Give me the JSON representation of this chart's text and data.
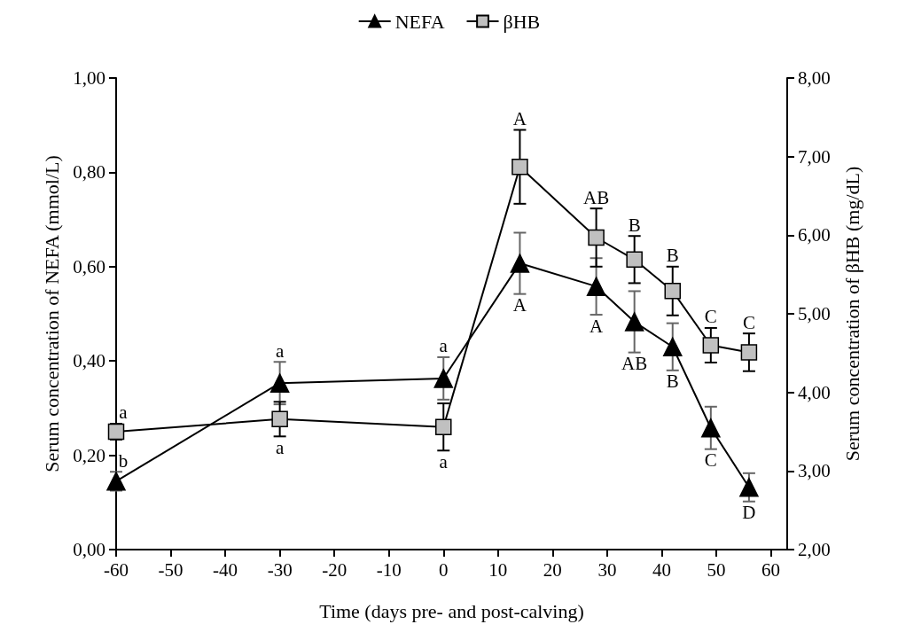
{
  "chart_data": {
    "type": "line",
    "xlabel": "Time (days pre- and post-calving)",
    "ylabel": "Serum concentration of NEFA (mmol/L)",
    "y2label": "Serum concentration of βHB (mg/dL)",
    "x": [
      -60,
      -30,
      0,
      14,
      28,
      35,
      42,
      49,
      56
    ],
    "series": [
      {
        "name": "NEFA",
        "color": "#000000",
        "marker": "triangle",
        "values": [
          0.145,
          0.353,
          0.363,
          0.607,
          0.558,
          0.483,
          0.43,
          0.258,
          0.132
        ],
        "errors": [
          0.02,
          0.045,
          0.045,
          0.065,
          0.06,
          0.065,
          0.05,
          0.045,
          0.03
        ]
      },
      {
        "name": "βHB",
        "color": "#c0c0c0",
        "marker": "square",
        "axis": "y2",
        "values": [
          3.5,
          3.66,
          3.56,
          6.87,
          5.97,
          5.69,
          5.29,
          4.6,
          4.51
        ],
        "errors": [
          0.1,
          0.22,
          0.3,
          0.47,
          0.37,
          0.3,
          0.31,
          0.22,
          0.24
        ]
      }
    ],
    "xlim": [
      -60,
      63
    ],
    "xticks": [
      -60,
      -50,
      -40,
      -30,
      -20,
      -10,
      0,
      10,
      20,
      30,
      40,
      50,
      60
    ],
    "ylim": [
      0,
      1
    ],
    "yticks": [
      {
        "value": 0,
        "label": "0,00"
      },
      {
        "value": 0.2,
        "label": "0,20"
      },
      {
        "value": 0.4,
        "label": "0,40"
      },
      {
        "value": 0.6,
        "label": "0,60"
      },
      {
        "value": 0.8,
        "label": "0,80"
      },
      {
        "value": 1,
        "label": "1,00"
      }
    ],
    "y2lim": [
      2,
      8
    ],
    "y2ticks": [
      {
        "value": 2,
        "label": "2,00"
      },
      {
        "value": 3,
        "label": "3,00"
      },
      {
        "value": 4,
        "label": "4,00"
      },
      {
        "value": 5,
        "label": "5,00"
      },
      {
        "value": 6,
        "label": "6,00"
      },
      {
        "value": 7,
        "label": "7,00"
      },
      {
        "value": 8,
        "label": "8,00"
      }
    ],
    "annotations": [
      {
        "text": "b",
        "x": -60,
        "y": 0.165
      },
      {
        "text": "a",
        "x": -30,
        "y": 0.398
      },
      {
        "text": "a",
        "x": 0,
        "y": 0.408
      },
      {
        "text": "A",
        "x": 14,
        "y": 0.542
      },
      {
        "text": "A",
        "x": 28,
        "y": 0.498
      },
      {
        "text": "AB",
        "x": 35,
        "y": 0.418
      },
      {
        "text": "B",
        "x": 42,
        "y": 0.38
      },
      {
        "text": "C",
        "x": 49,
        "y": 0.213
      },
      {
        "text": "D",
        "x": 56,
        "y": 0.102
      },
      {
        "text": "a",
        "x": -60,
        "y": 0.267
      },
      {
        "text": "a",
        "x": -30,
        "y": 0.24
      },
      {
        "text": "a",
        "x": 0,
        "y": 0.21
      },
      {
        "text": "A",
        "x": 14,
        "y": 0.89
      },
      {
        "text": "AB",
        "x": 28,
        "y": 0.723
      },
      {
        "text": "B",
        "x": 35,
        "y": 0.665
      },
      {
        "text": "B",
        "x": 42,
        "y": 0.6
      },
      {
        "text": "C",
        "x": 49,
        "y": 0.47
      },
      {
        "text": "C",
        "x": 56,
        "y": 0.458
      }
    ],
    "grid": false,
    "legend": "top",
    "line_style": "solid"
  }
}
